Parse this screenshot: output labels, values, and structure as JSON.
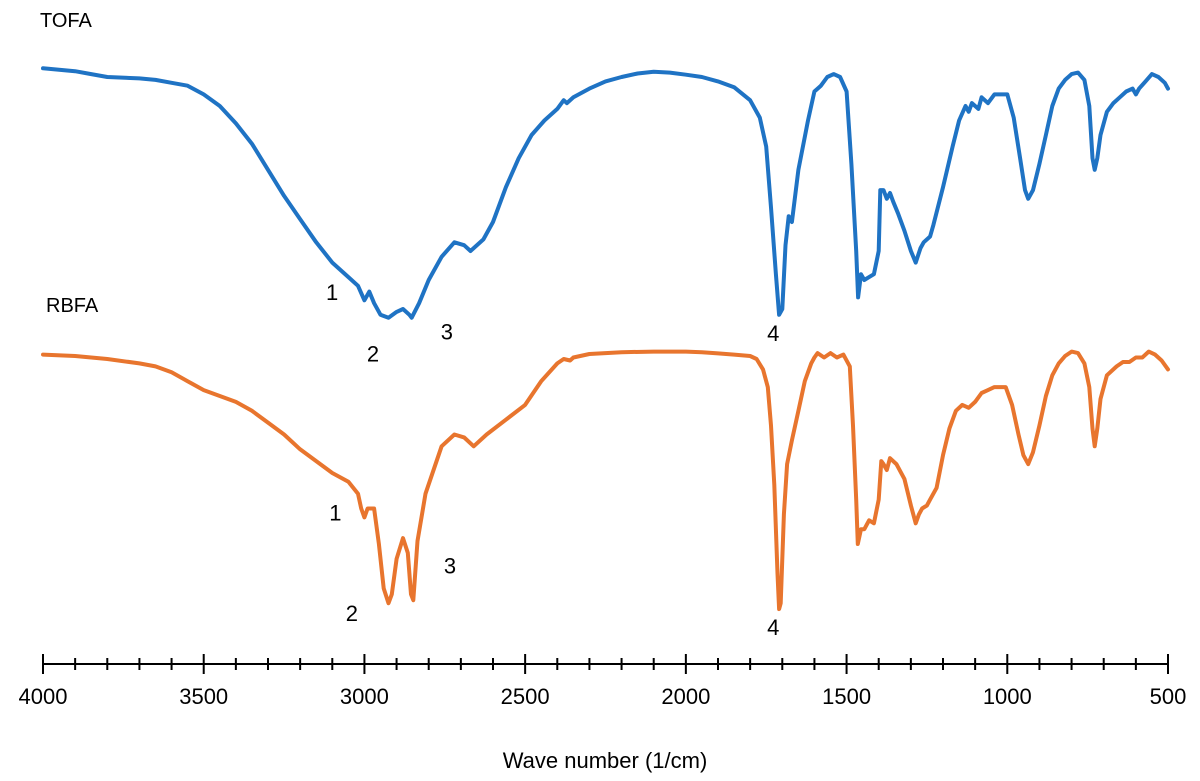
{
  "chart_data": {
    "type": "line",
    "title": "",
    "xlabel": "Wave number (1/cm)",
    "ylabel": "",
    "x_reversed": true,
    "xlim": [
      4000,
      500
    ],
    "x_major_ticks": [
      4000,
      3500,
      3000,
      2500,
      2000,
      1500,
      1000,
      500
    ],
    "x_minor_step": 100,
    "ylim": [
      0,
      100
    ],
    "grid": false,
    "legend": "none",
    "series": [
      {
        "name": "TOFA",
        "color": "#1f73c4",
        "points": [
          [
            4000,
            93
          ],
          [
            3900,
            92
          ],
          [
            3850,
            91
          ],
          [
            3800,
            90
          ],
          [
            3700,
            89.5
          ],
          [
            3650,
            89
          ],
          [
            3600,
            88
          ],
          [
            3550,
            87
          ],
          [
            3500,
            84
          ],
          [
            3450,
            80
          ],
          [
            3400,
            74
          ],
          [
            3350,
            67
          ],
          [
            3300,
            58
          ],
          [
            3250,
            49
          ],
          [
            3200,
            41
          ],
          [
            3150,
            33
          ],
          [
            3100,
            26
          ],
          [
            3050,
            21
          ],
          [
            3020,
            18
          ],
          [
            3000,
            13
          ],
          [
            2985,
            16
          ],
          [
            2970,
            12
          ],
          [
            2950,
            8
          ],
          [
            2925,
            7
          ],
          [
            2900,
            9
          ],
          [
            2880,
            10
          ],
          [
            2860,
            8
          ],
          [
            2853,
            7
          ],
          [
            2830,
            12
          ],
          [
            2800,
            20
          ],
          [
            2760,
            28
          ],
          [
            2720,
            33
          ],
          [
            2690,
            32
          ],
          [
            2670,
            30
          ],
          [
            2630,
            34
          ],
          [
            2600,
            40
          ],
          [
            2560,
            52
          ],
          [
            2520,
            62
          ],
          [
            2480,
            70
          ],
          [
            2440,
            75
          ],
          [
            2400,
            79
          ],
          [
            2380,
            82
          ],
          [
            2370,
            81
          ],
          [
            2350,
            83
          ],
          [
            2300,
            86
          ],
          [
            2250,
            88.5
          ],
          [
            2200,
            90
          ],
          [
            2150,
            91.2
          ],
          [
            2100,
            91.8
          ],
          [
            2050,
            91.5
          ],
          [
            2000,
            90.8
          ],
          [
            1950,
            90
          ],
          [
            1900,
            88.5
          ],
          [
            1850,
            86.5
          ],
          [
            1800,
            82
          ],
          [
            1770,
            76
          ],
          [
            1750,
            66
          ],
          [
            1735,
            45
          ],
          [
            1720,
            22
          ],
          [
            1710,
            8
          ],
          [
            1700,
            10
          ],
          [
            1690,
            32
          ],
          [
            1680,
            42
          ],
          [
            1670,
            40
          ],
          [
            1650,
            58
          ],
          [
            1620,
            75
          ],
          [
            1600,
            85
          ],
          [
            1580,
            87
          ],
          [
            1560,
            90
          ],
          [
            1540,
            91
          ],
          [
            1520,
            90
          ],
          [
            1500,
            85
          ],
          [
            1485,
            60
          ],
          [
            1470,
            30
          ],
          [
            1464,
            14
          ],
          [
            1455,
            22
          ],
          [
            1445,
            20
          ],
          [
            1430,
            21
          ],
          [
            1415,
            22
          ],
          [
            1400,
            30
          ],
          [
            1395,
            51
          ],
          [
            1385,
            51
          ],
          [
            1375,
            48
          ],
          [
            1365,
            50
          ],
          [
            1355,
            47
          ],
          [
            1340,
            43
          ],
          [
            1320,
            37
          ],
          [
            1300,
            30
          ],
          [
            1285,
            26
          ],
          [
            1270,
            31
          ],
          [
            1260,
            33
          ],
          [
            1240,
            35
          ],
          [
            1230,
            39
          ],
          [
            1200,
            52
          ],
          [
            1170,
            66
          ],
          [
            1150,
            75
          ],
          [
            1130,
            80
          ],
          [
            1120,
            78
          ],
          [
            1110,
            81
          ],
          [
            1090,
            79
          ],
          [
            1080,
            83
          ],
          [
            1060,
            81
          ],
          [
            1040,
            84
          ],
          [
            1020,
            84
          ],
          [
            1000,
            84
          ],
          [
            980,
            76
          ],
          [
            960,
            62
          ],
          [
            945,
            51
          ],
          [
            935,
            48
          ],
          [
            920,
            51
          ],
          [
            900,
            60
          ],
          [
            880,
            70
          ],
          [
            860,
            80
          ],
          [
            840,
            86
          ],
          [
            820,
            89
          ],
          [
            800,
            91
          ],
          [
            780,
            91.5
          ],
          [
            760,
            89
          ],
          [
            745,
            80
          ],
          [
            735,
            62
          ],
          [
            728,
            58
          ],
          [
            720,
            62
          ],
          [
            710,
            70
          ],
          [
            690,
            78
          ],
          [
            670,
            81
          ],
          [
            650,
            83
          ],
          [
            630,
            85
          ],
          [
            610,
            86
          ],
          [
            600,
            84
          ],
          [
            590,
            86
          ],
          [
            570,
            88.5
          ],
          [
            550,
            91
          ],
          [
            530,
            90
          ],
          [
            510,
            88
          ],
          [
            500,
            86
          ]
        ]
      },
      {
        "name": "RBFA",
        "color": "#e8752e",
        "points": [
          [
            4000,
            89
          ],
          [
            3900,
            88.5
          ],
          [
            3850,
            88
          ],
          [
            3800,
            87.5
          ],
          [
            3700,
            86
          ],
          [
            3650,
            85
          ],
          [
            3600,
            83
          ],
          [
            3550,
            80
          ],
          [
            3500,
            77
          ],
          [
            3450,
            75
          ],
          [
            3400,
            73
          ],
          [
            3350,
            70
          ],
          [
            3300,
            66
          ],
          [
            3250,
            62
          ],
          [
            3200,
            57
          ],
          [
            3150,
            53
          ],
          [
            3100,
            49
          ],
          [
            3050,
            46
          ],
          [
            3020,
            42
          ],
          [
            3010,
            37
          ],
          [
            3000,
            34
          ],
          [
            2990,
            37
          ],
          [
            2970,
            37
          ],
          [
            2955,
            25
          ],
          [
            2940,
            10
          ],
          [
            2925,
            5
          ],
          [
            2915,
            8
          ],
          [
            2900,
            20
          ],
          [
            2880,
            27
          ],
          [
            2865,
            22
          ],
          [
            2855,
            8
          ],
          [
            2848,
            6
          ],
          [
            2835,
            26
          ],
          [
            2810,
            42
          ],
          [
            2760,
            58
          ],
          [
            2720,
            62
          ],
          [
            2690,
            61
          ],
          [
            2660,
            58
          ],
          [
            2620,
            62
          ],
          [
            2560,
            67
          ],
          [
            2500,
            72
          ],
          [
            2450,
            80
          ],
          [
            2400,
            86
          ],
          [
            2380,
            87.5
          ],
          [
            2360,
            87
          ],
          [
            2350,
            88
          ],
          [
            2300,
            89.2
          ],
          [
            2200,
            89.8
          ],
          [
            2100,
            90
          ],
          [
            2000,
            90
          ],
          [
            1950,
            89.8
          ],
          [
            1900,
            89.4
          ],
          [
            1850,
            89
          ],
          [
            1800,
            88.5
          ],
          [
            1780,
            87.5
          ],
          [
            1760,
            84
          ],
          [
            1745,
            78
          ],
          [
            1735,
            65
          ],
          [
            1725,
            45
          ],
          [
            1715,
            15
          ],
          [
            1710,
            3
          ],
          [
            1705,
            5
          ],
          [
            1695,
            35
          ],
          [
            1685,
            52
          ],
          [
            1670,
            60
          ],
          [
            1650,
            70
          ],
          [
            1630,
            80
          ],
          [
            1610,
            86
          ],
          [
            1600,
            88
          ],
          [
            1590,
            89.5
          ],
          [
            1570,
            88
          ],
          [
            1550,
            89.5
          ],
          [
            1530,
            88
          ],
          [
            1510,
            89
          ],
          [
            1490,
            85
          ],
          [
            1480,
            65
          ],
          [
            1470,
            40
          ],
          [
            1465,
            25
          ],
          [
            1455,
            30
          ],
          [
            1445,
            30
          ],
          [
            1430,
            33
          ],
          [
            1415,
            32
          ],
          [
            1400,
            40
          ],
          [
            1392,
            53
          ],
          [
            1385,
            52
          ],
          [
            1375,
            50
          ],
          [
            1365,
            54
          ],
          [
            1345,
            52
          ],
          [
            1320,
            47
          ],
          [
            1300,
            38
          ],
          [
            1285,
            32
          ],
          [
            1275,
            35
          ],
          [
            1265,
            37
          ],
          [
            1250,
            38
          ],
          [
            1240,
            40
          ],
          [
            1220,
            44
          ],
          [
            1200,
            55
          ],
          [
            1180,
            64
          ],
          [
            1160,
            70
          ],
          [
            1140,
            72
          ],
          [
            1120,
            71
          ],
          [
            1100,
            73
          ],
          [
            1080,
            76
          ],
          [
            1060,
            77
          ],
          [
            1040,
            78
          ],
          [
            1020,
            78
          ],
          [
            1005,
            78
          ],
          [
            985,
            72
          ],
          [
            965,
            62
          ],
          [
            950,
            55
          ],
          [
            935,
            52
          ],
          [
            920,
            56
          ],
          [
            900,
            65
          ],
          [
            880,
            75
          ],
          [
            860,
            82
          ],
          [
            840,
            86
          ],
          [
            820,
            88.5
          ],
          [
            800,
            90
          ],
          [
            780,
            89.5
          ],
          [
            760,
            86
          ],
          [
            745,
            78
          ],
          [
            735,
            64
          ],
          [
            728,
            58
          ],
          [
            720,
            64
          ],
          [
            710,
            74
          ],
          [
            690,
            82
          ],
          [
            660,
            85
          ],
          [
            640,
            86.5
          ],
          [
            620,
            86.5
          ],
          [
            600,
            88
          ],
          [
            580,
            88
          ],
          [
            560,
            90
          ],
          [
            540,
            89
          ],
          [
            520,
            87
          ],
          [
            500,
            84
          ]
        ]
      }
    ],
    "series_labels": [
      {
        "text": "TOFA",
        "series": "TOFA"
      },
      {
        "text": "RBFA",
        "series": "RBFA"
      }
    ],
    "annotations": [
      {
        "text": "1",
        "series": "TOFA",
        "x": 3020,
        "y": 18
      },
      {
        "text": "2",
        "series": "TOFA",
        "x": 2930,
        "y": 7
      },
      {
        "text": "3",
        "series": "TOFA",
        "x": 2800,
        "y": 7
      },
      {
        "text": "4",
        "series": "TOFA",
        "x": 1710,
        "y": 8
      },
      {
        "text": "1",
        "series": "RBFA",
        "x": 3010,
        "y": 37
      },
      {
        "text": "2",
        "series": "RBFA",
        "x": 2940,
        "y": 5
      },
      {
        "text": "3",
        "series": "RBFA",
        "x": 2790,
        "y": 15
      },
      {
        "text": "4",
        "series": "RBFA",
        "x": 1710,
        "y": 3
      }
    ]
  }
}
